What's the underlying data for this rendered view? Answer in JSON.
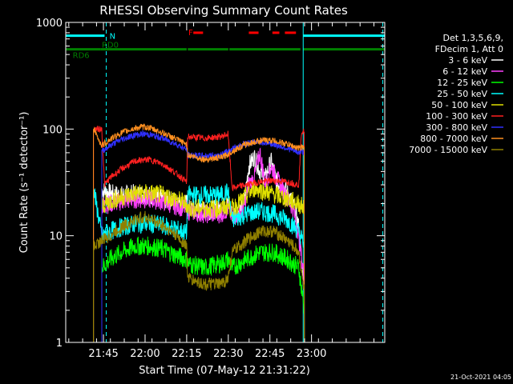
{
  "chart_data": {
    "type": "line",
    "title": "RHESSI Observing Summary Count Rates",
    "xlabel": "Start Time (07-May-12 21:31:22)",
    "ylabel": "Count Rate (s⁻¹ detector⁻¹)",
    "yscale": "log",
    "ylim": [
      1,
      1000
    ],
    "xlim_minutes": [
      0,
      115
    ],
    "x_ticks": [
      {
        "label": "21:45",
        "t": 13.6
      },
      {
        "label": "22:00",
        "t": 28.6
      },
      {
        "label": "22:15",
        "t": 43.6
      },
      {
        "label": "22:30",
        "t": 58.6
      },
      {
        "label": "22:45",
        "t": 73.6
      },
      {
        "label": "23:00",
        "t": 88.6
      }
    ],
    "y_ticks": [
      {
        "label": "1",
        "v": 1
      },
      {
        "label": "10",
        "v": 10
      },
      {
        "label": "100",
        "v": 100
      },
      {
        "label": "1000",
        "v": 1000
      }
    ],
    "legend": {
      "header": [
        "Det 1,3,5,6,9,",
        "FDecim 1, Att 0"
      ],
      "placement": "right"
    },
    "series": [
      {
        "name": "3 - 6 keV",
        "color": "#ffffff",
        "x": [
          13,
          16,
          20,
          25,
          30,
          35,
          40,
          43.6,
          44,
          50,
          56,
          58.5,
          60,
          62,
          64,
          66,
          68,
          70,
          72,
          74,
          76,
          78,
          80,
          82,
          84,
          85,
          86
        ],
        "y": [
          27,
          25,
          24,
          25,
          24,
          22,
          21,
          20,
          18,
          17,
          18,
          20,
          16,
          17,
          18,
          45,
          55,
          40,
          35,
          50,
          32,
          30,
          25,
          20,
          12,
          6,
          3
        ]
      },
      {
        "name": "6 - 12 keV",
        "color": "#ff40ff",
        "x": [
          13,
          16,
          20,
          25,
          30,
          35,
          40,
          43.6,
          44,
          50,
          56,
          58.5,
          60,
          64,
          66,
          68,
          70,
          72,
          74,
          76,
          78,
          80,
          82,
          84,
          85,
          86
        ],
        "y": [
          19,
          20,
          21,
          22,
          22,
          21,
          19,
          18,
          17,
          16,
          16,
          18,
          15,
          17,
          30,
          35,
          60,
          30,
          45,
          35,
          28,
          22,
          18,
          10,
          6,
          4
        ]
      },
      {
        "name": "12 - 25 keV",
        "color": "#00ff00",
        "x": [
          13,
          16,
          20,
          25,
          30,
          35,
          40,
          43.6,
          44,
          50,
          56,
          58.5,
          60,
          65,
          70,
          75,
          80,
          84,
          86
        ],
        "y": [
          5,
          6,
          7,
          8,
          8,
          7.5,
          6.5,
          6,
          5.5,
          5,
          5.5,
          6,
          5,
          6,
          7,
          7,
          6,
          5,
          2
        ]
      },
      {
        "name": "25 - 50 keV",
        "color": "#00ffff",
        "x": [
          10,
          13,
          16,
          20,
          25,
          30,
          35,
          40,
          43.6,
          44,
          50,
          56,
          58.5,
          60,
          65,
          70,
          75,
          80,
          84,
          86
        ],
        "y": [
          28,
          10,
          11,
          12,
          13,
          13,
          12.5,
          11.5,
          10.5,
          24,
          24,
          24,
          26,
          14,
          16,
          17,
          16,
          14,
          11,
          8
        ]
      },
      {
        "name": "50 - 100 keV",
        "color": "#e0e000",
        "x": [
          13,
          16,
          20,
          25,
          30,
          35,
          40,
          43.6,
          44,
          50,
          56,
          58.5,
          60,
          64,
          68,
          72,
          76,
          80,
          84,
          86
        ],
        "y": [
          19,
          21,
          23,
          25,
          25,
          24,
          22,
          20,
          18,
          18,
          18,
          19,
          18,
          22,
          28,
          26,
          24,
          22,
          20,
          18
        ]
      },
      {
        "name": "100 - 300 keV",
        "color": "#ff2020",
        "x": [
          10,
          13,
          14,
          16,
          20,
          25,
          30,
          35,
          40,
          43.6,
          44,
          50,
          56,
          58.5,
          60,
          65,
          70,
          75,
          80,
          84,
          85,
          86
        ],
        "y": [
          100,
          100,
          30,
          35,
          42,
          50,
          52,
          47,
          38,
          32,
          85,
          82,
          85,
          90,
          28,
          30,
          32,
          33,
          32,
          30,
          95,
          95
        ]
      },
      {
        "name": "300 - 800 keV",
        "color": "#3030ff",
        "x": [
          13,
          16,
          20,
          25,
          28,
          30,
          35,
          40,
          43.6,
          44,
          50,
          56,
          58.5,
          60,
          65,
          70,
          75,
          80,
          84,
          85,
          86
        ],
        "y": [
          62,
          70,
          80,
          88,
          90,
          89,
          82,
          72,
          64,
          57,
          56,
          57,
          62,
          66,
          74,
          76,
          72,
          66,
          60,
          62,
          60
        ]
      },
      {
        "name": "800 - 7000 keV",
        "color": "#ff9020",
        "x": [
          10,
          13,
          16,
          20,
          25,
          28,
          30,
          35,
          40,
          43.6,
          44,
          50,
          56,
          58.5,
          60,
          65,
          70,
          75,
          80,
          84,
          85,
          86
        ],
        "y": [
          100,
          70,
          80,
          92,
          102,
          105,
          103,
          92,
          80,
          72,
          57,
          52,
          54,
          58,
          62,
          72,
          78,
          78,
          72,
          66,
          68,
          65
        ]
      },
      {
        "name": "7000 - 15000 keV",
        "color": "#908000",
        "x": [
          10,
          13,
          16,
          20,
          25,
          28,
          30,
          35,
          40,
          43.6,
          44,
          50,
          56,
          58.5,
          60,
          65,
          70,
          75,
          80,
          84,
          86
        ],
        "y": [
          8,
          9,
          10,
          12,
          14,
          15,
          14.5,
          12.5,
          10,
          8,
          4,
          3.5,
          3.5,
          4,
          7,
          9,
          11,
          11,
          9,
          7,
          3
        ]
      }
    ],
    "annotations": [
      {
        "label": "N",
        "color": "#00ffff",
        "flag": "night",
        "segments": [
          [
            0,
            14
          ],
          [
            85.6,
            115
          ]
        ],
        "level": 750
      },
      {
        "label": "RD6",
        "color": "#008000",
        "flag": "rate decimation 6",
        "segments": [
          [
            0,
            12.5
          ]
        ],
        "level": 560
      },
      {
        "label": "RD0",
        "color": "#008000",
        "flag": "rate decimation 0",
        "segments": [
          [
            12.5,
            43.6
          ],
          [
            44,
            58.6
          ],
          [
            59,
            84.6
          ],
          [
            85.5,
            115
          ]
        ],
        "level": 560
      },
      {
        "label": "F",
        "color": "#ff0000",
        "flag": "flare",
        "segments": [
          [
            46,
            49.5
          ],
          [
            66,
            69.5
          ],
          [
            74.5,
            77
          ],
          [
            79,
            83
          ]
        ],
        "level": 800
      }
    ],
    "vertical_lines": [
      {
        "t": 0,
        "color": "#00ffff",
        "style": "solid"
      },
      {
        "t": 14.6,
        "color": "#00ffff",
        "style": "dashed"
      },
      {
        "t": 85.6,
        "color": "#00ffff",
        "style": "solid"
      },
      {
        "t": 114.3,
        "color": "#00ffff",
        "style": "dashed"
      }
    ]
  },
  "timestamp": "21-Oct-2021 04:05",
  "colors": {
    "background": "#000000",
    "axes": "#ffffff"
  }
}
